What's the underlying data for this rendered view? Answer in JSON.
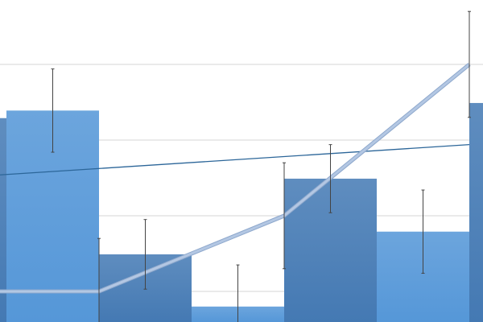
{
  "chart_data": {
    "type": "bar",
    "title": "",
    "xlabel": "",
    "ylabel": "",
    "ylim": [
      0.6,
      4.85
    ],
    "grid": true,
    "gridlines": [
      1,
      2,
      3,
      4
    ],
    "bars": {
      "x": [
        0,
        1,
        2,
        3,
        4,
        5,
        6
      ],
      "values": [
        3.29,
        3.39,
        1.49,
        0.8,
        2.49,
        1.79,
        3.49
      ],
      "errors": [
        null,
        0.55,
        0.46,
        0.55,
        0.45,
        0.55,
        null
      ],
      "colors": [
        "dark",
        "light",
        "dark",
        "light",
        "dark",
        "light",
        "dark"
      ]
    },
    "line": {
      "x": [
        0.5,
        1.5,
        3.5,
        5.5
      ],
      "values": [
        1.0,
        1.0,
        2.0,
        4.0
      ],
      "errors": [
        null,
        0.7,
        0.7,
        0.7
      ]
    },
    "trendline": {
      "x": [
        0.43,
        5.5
      ],
      "values": [
        2.54,
        2.94
      ]
    },
    "colors": {
      "bar_dark": "#4f82b8",
      "bar_light": "#62a0dc",
      "line": "#b3c7e3",
      "trendline": "#2c6699",
      "grid": "#dddddd",
      "errorbar": "#444444"
    }
  }
}
